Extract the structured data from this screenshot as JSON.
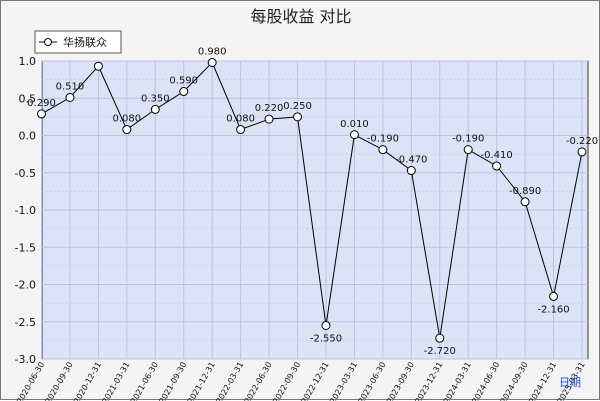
{
  "chart_data": {
    "type": "line",
    "title": "每股收益  对比",
    "legend": {
      "placement": "top-left",
      "entries": [
        "华扬联众"
      ]
    },
    "x_unit_label": "日期",
    "categories": [
      "2020-06-30",
      "2020-09-30",
      "2020-12-31",
      "2021-03-31",
      "2021-06-30",
      "2021-09-30",
      "2021-12-31",
      "2022-03-31",
      "2022-06-30",
      "2022-09-30",
      "2022-12-31",
      "2023-03-31",
      "2023-06-30",
      "2023-09-30",
      "2023-12-31",
      "2024-03-31",
      "2024-06-30",
      "2024-09-30",
      "2024-12-31",
      "2025-03-31"
    ],
    "series": [
      {
        "name": "华扬联众",
        "values": [
          0.29,
          0.51,
          0.93,
          0.08,
          0.35,
          0.59,
          0.98,
          0.08,
          0.22,
          0.25,
          -2.55,
          0.01,
          -0.19,
          -0.47,
          -2.72,
          -0.19,
          -0.41,
          -0.89,
          -2.16,
          -0.22
        ],
        "labels": [
          "0.290",
          "0.510",
          "",
          "0.080",
          "0.350",
          "0.590",
          "0.980",
          "0.080",
          "0.220",
          "0.250",
          "-2.550",
          "0.010",
          "-0.190",
          "-0.470",
          "-2.720",
          "-0.190",
          "-0.410",
          "-0.890",
          "-2.160",
          "-0.220"
        ]
      }
    ],
    "ylim": [
      -3.0,
      1.0
    ],
    "yticks": [
      "1.0",
      "0.5",
      "0.0",
      "-0.5",
      "-1.0",
      "-1.5",
      "-2.0",
      "-2.5",
      "-3.0"
    ],
    "grid": true,
    "colors": {
      "plot_background": "#dde3f7",
      "grid": "#b9c2e6",
      "line": "#000000",
      "marker_fill": "#ffffff"
    }
  }
}
